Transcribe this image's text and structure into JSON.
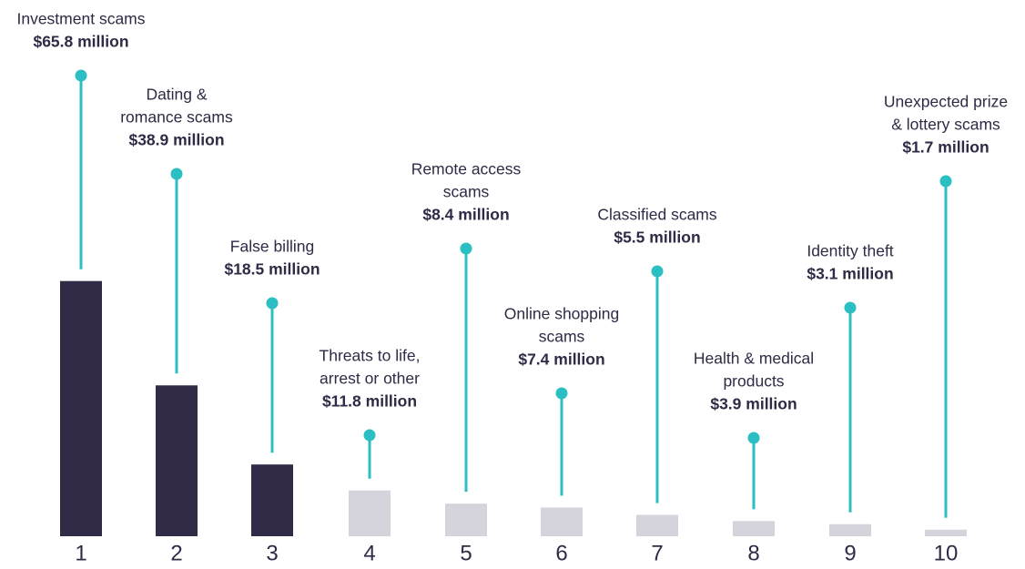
{
  "chart_data": {
    "type": "bar",
    "categories": [
      "1",
      "2",
      "3",
      "4",
      "5",
      "6",
      "7",
      "8",
      "9",
      "10"
    ],
    "names": [
      [
        "Investment scams"
      ],
      [
        "Dating &",
        "romance scams"
      ],
      [
        "False billing"
      ],
      [
        "Threats to life,",
        "arrest or other"
      ],
      [
        "Remote access",
        "scams"
      ],
      [
        "Online shopping",
        "scams"
      ],
      [
        "Classified scams"
      ],
      [
        "Health & medical",
        "products"
      ],
      [
        "Identity theft"
      ],
      [
        "Unexpected prize",
        "& lottery scams"
      ]
    ],
    "values": [
      65.8,
      38.9,
      18.5,
      11.8,
      8.4,
      7.4,
      5.5,
      3.9,
      3.1,
      1.7
    ],
    "value_labels": [
      "$65.8 million",
      "$38.9 million",
      "$18.5 million",
      "$11.8 million",
      "$8.4 million",
      "$7.4 million",
      "$5.5 million",
      "$3.9 million",
      "$3.1 million",
      "$1.7 million"
    ],
    "colors": [
      "#322b48",
      "#322b48",
      "#322b48",
      "#d5d3db",
      "#d5d3db",
      "#d5d3db",
      "#d5d3db",
      "#d5d3db",
      "#d5d3db",
      "#d5d3db"
    ],
    "pin_color": "#2bbfc4"
  }
}
